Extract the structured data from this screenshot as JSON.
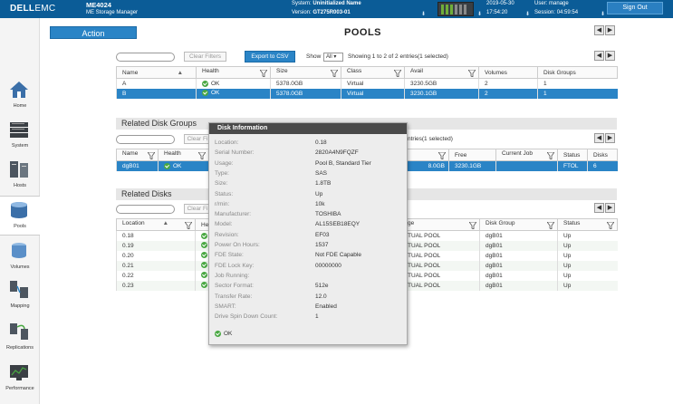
{
  "header": {
    "brand_dell": "DELL",
    "brand_emc": "EMC",
    "model": "ME4024",
    "manager": "ME Storage Manager",
    "system_label": "System:",
    "system_value": "Uninitialized Name",
    "version_label": "Version:",
    "version_value": "GT275R003-01",
    "date": "2019-05-30",
    "time": "17:54:20",
    "user_label": "User:",
    "user_value": "manage",
    "session_label": "Session:",
    "session_value": "04:59:54",
    "signout": "Sign Out"
  },
  "sidebar": {
    "items": [
      {
        "label": "Home",
        "icon": "home-icon"
      },
      {
        "label": "System",
        "icon": "system-icon"
      },
      {
        "label": "Hosts",
        "icon": "hosts-icon"
      },
      {
        "label": "Pools",
        "icon": "pools-icon"
      },
      {
        "label": "Volumes",
        "icon": "volumes-icon"
      },
      {
        "label": "Mapping",
        "icon": "mapping-icon"
      },
      {
        "label": "Replications",
        "icon": "replications-icon"
      },
      {
        "label": "Performance",
        "icon": "performance-icon"
      }
    ]
  },
  "main": {
    "action": "Action",
    "title": "POOLS"
  },
  "pools": {
    "clear_filters": "Clear Filters",
    "export": "Export to CSV",
    "show_label": "Show",
    "show_value": "All",
    "showing": "Showing 1 to 2 of 2 entries(1 selected)",
    "columns": [
      "Name",
      "Health",
      "Size",
      "Class",
      "Avail",
      "Volumes",
      "Disk Groups"
    ],
    "rows": [
      {
        "name": "A",
        "health": "OK",
        "size": "5378.0GB",
        "class": "Virtual",
        "avail": "3230.5GB",
        "volumes": "2",
        "disk_groups": "1"
      },
      {
        "name": "B",
        "health": "OK",
        "size": "5378.0GB",
        "class": "Virtual",
        "avail": "3230.1GB",
        "volumes": "2",
        "disk_groups": "1"
      }
    ]
  },
  "disk_groups": {
    "title": "Related Disk Groups",
    "clear_filters": "Clear Fi",
    "showing": "ntries(1 selected)",
    "columns": [
      "Name",
      "Health",
      "",
      "Free",
      "Current Job",
      "Status",
      "Disks"
    ],
    "rows": [
      {
        "name": "dgB01",
        "health": "OK",
        "hidden": "8.0GB",
        "free": "3230.1GB",
        "job": "",
        "status": "FTOL",
        "disks": "6"
      }
    ]
  },
  "disks": {
    "title": "Related Disks",
    "clear_filters": "Clear Fi",
    "columns": [
      "Location",
      "Hea",
      "ge",
      "Disk Group",
      "Status"
    ],
    "rows": [
      {
        "location": "0.18",
        "usage": "TUAL POOL",
        "group": "dgB01",
        "status": "Up"
      },
      {
        "location": "0.19",
        "usage": "TUAL POOL",
        "group": "dgB01",
        "status": "Up"
      },
      {
        "location": "0.20",
        "usage": "TUAL POOL",
        "group": "dgB01",
        "status": "Up"
      },
      {
        "location": "0.21",
        "usage": "TUAL POOL",
        "group": "dgB01",
        "status": "Up"
      },
      {
        "location": "0.22",
        "usage": "TUAL POOL",
        "group": "dgB01",
        "status": "Up"
      },
      {
        "location": "0.23",
        "usage": "TUAL POOL",
        "group": "dgB01",
        "status": "Up"
      }
    ]
  },
  "popup": {
    "title": "Disk Information",
    "fields": [
      {
        "k": "Location:",
        "v": "0.18"
      },
      {
        "k": "Serial Number:",
        "v": "2820A4N9FQZF"
      },
      {
        "k": "Usage:",
        "v": "Pool B, Standard Tier"
      },
      {
        "k": "Type:",
        "v": "SAS"
      },
      {
        "k": "Size:",
        "v": "1.8TB"
      },
      {
        "k": "Status:",
        "v": "Up"
      },
      {
        "k": "r/min:",
        "v": "10k"
      },
      {
        "k": "Manufacturer:",
        "v": "TOSHIBA"
      },
      {
        "k": "Model:",
        "v": "AL15SEB18EQY"
      },
      {
        "k": "Revision:",
        "v": "EF03"
      },
      {
        "k": "Power On Hours:",
        "v": "1537"
      },
      {
        "k": "FDE State:",
        "v": "Not FDE Capable"
      },
      {
        "k": "FDE Lock Key:",
        "v": "00000000"
      },
      {
        "k": "Job Running:",
        "v": ""
      },
      {
        "k": "Sector Format:",
        "v": "512e"
      },
      {
        "k": "Transfer Rate:",
        "v": "12.0"
      },
      {
        "k": "SMART:",
        "v": "Enabled"
      },
      {
        "k": "Drive Spin Down Count:",
        "v": "1"
      }
    ],
    "ok": "OK"
  },
  "colors": {
    "header_bg": "#0b5c97",
    "accent": "#2a84c6",
    "ok_green": "#49a842"
  }
}
